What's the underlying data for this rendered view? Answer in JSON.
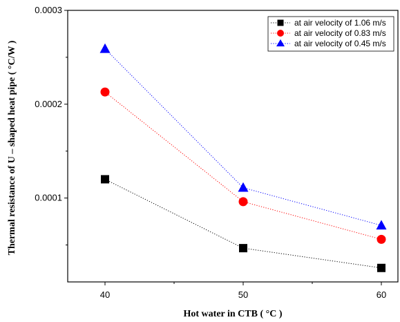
{
  "chart_data": {
    "type": "scatter",
    "title": "",
    "xlabel": "Hot water in CTB ( °C )",
    "ylabel": "Thermal resistance of U – shaped heat pipe ( °C/W )",
    "x": [
      40,
      50,
      60
    ],
    "xlim": [
      37.3,
      61.2
    ],
    "ylim": [
      1.06e-05,
      0.0003
    ],
    "xticks": [
      40,
      50,
      60
    ],
    "xtick_labels": [
      "40",
      "50",
      "60"
    ],
    "yticks": [
      0.0001,
      0.0002,
      0.0003
    ],
    "ytick_labels": [
      "0.0001",
      "0.0002",
      "0.0003"
    ],
    "grid": false,
    "legend_position": "top-right",
    "series": [
      {
        "name": "at air velocity of 1.06 m/s",
        "marker": "square",
        "color": "#000000",
        "values": [
          0.00012,
          4.66e-05,
          2.55e-05
        ]
      },
      {
        "name": "at air velocity of 0.83 m/s",
        "marker": "circle",
        "color": "#ff0000",
        "values": [
          0.000213,
          9.61e-05,
          5.6e-05
        ]
      },
      {
        "name": "at air velocity of 0.45 m/s",
        "marker": "triangle",
        "color": "#0000ff",
        "values": [
          0.000259,
          0.000111,
          7.08e-05
        ]
      }
    ]
  }
}
